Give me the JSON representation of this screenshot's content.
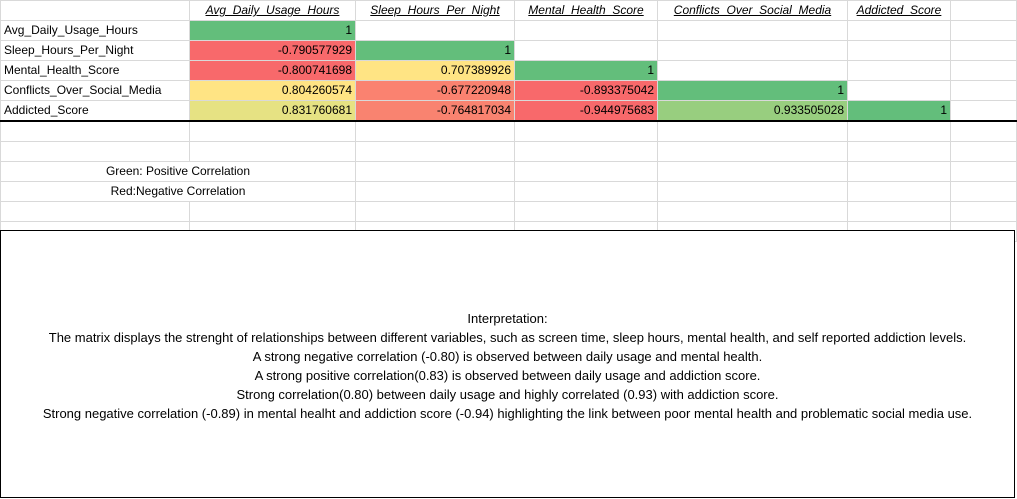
{
  "columns": [
    "Avg_Daily_Usage_Hours",
    "Sleep_Hours_Per_Night",
    "Mental_Health_Score",
    "Conflicts_Over_Social_Media",
    "Addicted_Score"
  ],
  "rows": [
    {
      "label": "Avg_Daily_Usage_Hours",
      "values": [
        "1",
        "",
        "",
        "",
        ""
      ]
    },
    {
      "label": "Sleep_Hours_Per_Night",
      "values": [
        "-0.790577929",
        "1",
        "",
        "",
        ""
      ]
    },
    {
      "label": "Mental_Health_Score",
      "values": [
        "-0.800741698",
        "0.707389926",
        "1",
        "",
        ""
      ]
    },
    {
      "label": "Conflicts_Over_Social_Media",
      "values": [
        "0.804260574",
        "-0.677220948",
        "-0.893375042",
        "1",
        ""
      ]
    },
    {
      "label": "Addicted_Score",
      "values": [
        "0.831760681",
        "-0.764817034",
        "-0.944975683",
        "0.933505028",
        "1"
      ]
    }
  ],
  "cell_colors": [
    [
      "#63be7b",
      null,
      null,
      null,
      null
    ],
    [
      "#f8696b",
      "#63be7b",
      null,
      null,
      null
    ],
    [
      "#f8696b",
      "#ffe484",
      "#63be7b",
      null,
      null
    ],
    [
      "#ffe484",
      "#fa8270",
      "#f8696b",
      "#63be7b",
      null
    ],
    [
      "#e6e283",
      "#f98370",
      "#f8696b",
      "#98ce7f",
      "#63be7b"
    ]
  ],
  "legend": {
    "green": "Green: Positive Correlation",
    "red": "Red:Negative Correlation"
  },
  "interpretation": {
    "title": "Interpretation:",
    "lines": [
      "The matrix displays the strenght of relationships between different variables, such as screen time, sleep hours, mental health, and self reported addiction levels.",
      "A strong negative correlation (-0.80) is observed between daily usage and mental health.",
      "A strong positive correlation(0.83) is observed between daily usage and addiction score.",
      "Strong correlation(0.80) between daily usage and highly correlated (0.93) with addiction score.",
      "Strong negative correlation (-0.89) in mental healht and addiction score (-0.94) highlighting the link between poor mental health and problematic social media use."
    ]
  }
}
